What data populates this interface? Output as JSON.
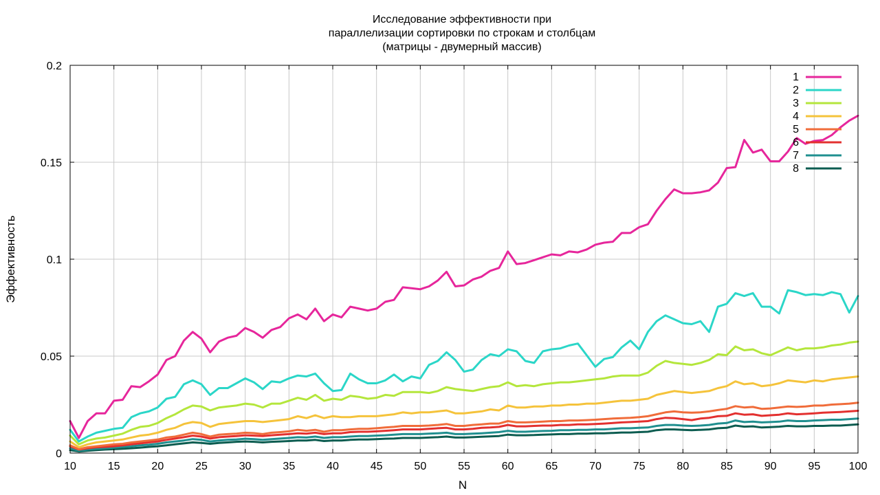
{
  "chart_data": {
    "type": "line",
    "title": [
      "Исследование эффективности при",
      "параллелизации сортировки по строкам и столбцам",
      "(матрицы - двумерный массив)"
    ],
    "xlabel": "N",
    "ylabel": "Эффективность",
    "xlim": [
      10,
      100
    ],
    "ylim": [
      0,
      0.2
    ],
    "xticks": [
      10,
      15,
      20,
      25,
      30,
      35,
      40,
      45,
      50,
      55,
      60,
      65,
      70,
      75,
      80,
      85,
      90,
      95,
      100
    ],
    "yticks": [
      0,
      0.05,
      0.1,
      0.15,
      0.2
    ],
    "ytick_labels": [
      "0",
      "0.05",
      "0.1",
      "0.15",
      "0.2"
    ],
    "grid": true,
    "legend_position": "top-right",
    "x": [
      10,
      11,
      12,
      13,
      14,
      15,
      16,
      17,
      18,
      19,
      20,
      21,
      22,
      23,
      24,
      25,
      26,
      27,
      28,
      29,
      30,
      31,
      32,
      33,
      34,
      35,
      36,
      37,
      38,
      39,
      40,
      41,
      42,
      43,
      44,
      45,
      46,
      47,
      48,
      49,
      50,
      51,
      52,
      53,
      54,
      55,
      56,
      57,
      58,
      59,
      60,
      61,
      62,
      63,
      64,
      65,
      66,
      67,
      68,
      69,
      70,
      71,
      72,
      73,
      74,
      75,
      76,
      77,
      78,
      79,
      80,
      81,
      82,
      83,
      84,
      85,
      86,
      87,
      88,
      89,
      90,
      91,
      92,
      93,
      94,
      95,
      96,
      97,
      98,
      99,
      100
    ],
    "series": [
      {
        "name": "1",
        "color": "#e6269b",
        "values": [
          0.0165,
          0.0078,
          0.0165,
          0.0205,
          0.0205,
          0.027,
          0.0275,
          0.0345,
          0.034,
          0.037,
          0.0405,
          0.048,
          0.05,
          0.058,
          0.0625,
          0.059,
          0.052,
          0.0575,
          0.0595,
          0.0605,
          0.0645,
          0.0625,
          0.0595,
          0.0635,
          0.065,
          0.0695,
          0.0715,
          0.069,
          0.0745,
          0.068,
          0.0715,
          0.07,
          0.0755,
          0.0745,
          0.0735,
          0.0745,
          0.078,
          0.079,
          0.0855,
          0.085,
          0.0845,
          0.086,
          0.089,
          0.0935,
          0.086,
          0.0865,
          0.0895,
          0.091,
          0.094,
          0.0955,
          0.104,
          0.0975,
          0.098,
          0.0995,
          0.101,
          0.1025,
          0.102,
          0.104,
          0.1035,
          0.105,
          0.1075,
          0.1085,
          0.109,
          0.1135,
          0.1135,
          0.1165,
          0.118,
          0.125,
          0.131,
          0.136,
          0.134,
          0.134,
          0.1345,
          0.1355,
          0.1395,
          0.147,
          0.1475,
          0.1615,
          0.155,
          0.1565,
          0.1505,
          0.1505,
          0.1555,
          0.1625,
          0.1595,
          0.161,
          0.1615,
          0.164,
          0.168,
          0.1715,
          0.174
        ]
      },
      {
        "name": "2",
        "color": "#2bd6c8",
        "values": [
          0.012,
          0.006,
          0.0085,
          0.0105,
          0.0115,
          0.0125,
          0.013,
          0.0185,
          0.0205,
          0.0215,
          0.0235,
          0.028,
          0.029,
          0.0355,
          0.0375,
          0.0355,
          0.03,
          0.0335,
          0.0335,
          0.036,
          0.0385,
          0.0365,
          0.033,
          0.037,
          0.0365,
          0.0385,
          0.04,
          0.0395,
          0.041,
          0.036,
          0.032,
          0.0325,
          0.041,
          0.038,
          0.036,
          0.036,
          0.0375,
          0.0405,
          0.037,
          0.0395,
          0.0385,
          0.0455,
          0.0475,
          0.052,
          0.048,
          0.042,
          0.043,
          0.048,
          0.051,
          0.05,
          0.0535,
          0.0525,
          0.0475,
          0.0465,
          0.0525,
          0.0535,
          0.054,
          0.0555,
          0.0565,
          0.0505,
          0.0445,
          0.0485,
          0.0495,
          0.0545,
          0.058,
          0.0535,
          0.0625,
          0.068,
          0.071,
          0.069,
          0.067,
          0.0665,
          0.068,
          0.0625,
          0.0755,
          0.077,
          0.0825,
          0.081,
          0.0825,
          0.0755,
          0.0755,
          0.072,
          0.084,
          0.083,
          0.0815,
          0.082,
          0.0815,
          0.083,
          0.082,
          0.0725,
          0.081
        ]
      },
      {
        "name": "3",
        "color": "#b4e63c",
        "values": [
          0.009,
          0.0045,
          0.0065,
          0.0075,
          0.008,
          0.009,
          0.01,
          0.012,
          0.0135,
          0.014,
          0.0155,
          0.018,
          0.02,
          0.0225,
          0.0245,
          0.024,
          0.022,
          0.0235,
          0.024,
          0.0245,
          0.0255,
          0.025,
          0.0235,
          0.0255,
          0.0255,
          0.027,
          0.0285,
          0.0275,
          0.03,
          0.027,
          0.028,
          0.0275,
          0.0295,
          0.029,
          0.028,
          0.0285,
          0.03,
          0.0295,
          0.0315,
          0.0315,
          0.0315,
          0.031,
          0.032,
          0.034,
          0.033,
          0.0325,
          0.032,
          0.033,
          0.034,
          0.0345,
          0.0365,
          0.0345,
          0.035,
          0.0345,
          0.0355,
          0.036,
          0.0365,
          0.0365,
          0.037,
          0.0375,
          0.038,
          0.0385,
          0.0395,
          0.04,
          0.04,
          0.04,
          0.0415,
          0.045,
          0.0475,
          0.0465,
          0.046,
          0.0455,
          0.0465,
          0.048,
          0.051,
          0.0505,
          0.055,
          0.053,
          0.0535,
          0.0515,
          0.0505,
          0.0525,
          0.0545,
          0.053,
          0.054,
          0.054,
          0.0545,
          0.0555,
          0.056,
          0.057,
          0.0575
        ]
      },
      {
        "name": "4",
        "color": "#f5c33b",
        "values": [
          0.006,
          0.003,
          0.0045,
          0.0055,
          0.006,
          0.0065,
          0.007,
          0.008,
          0.009,
          0.0095,
          0.0105,
          0.012,
          0.013,
          0.015,
          0.016,
          0.0155,
          0.0135,
          0.015,
          0.0155,
          0.016,
          0.0165,
          0.0165,
          0.016,
          0.0165,
          0.017,
          0.0175,
          0.019,
          0.018,
          0.0195,
          0.018,
          0.019,
          0.0185,
          0.0185,
          0.019,
          0.019,
          0.019,
          0.0195,
          0.02,
          0.021,
          0.0205,
          0.021,
          0.021,
          0.0215,
          0.022,
          0.0205,
          0.0205,
          0.021,
          0.0215,
          0.0225,
          0.022,
          0.0245,
          0.0235,
          0.0235,
          0.024,
          0.024,
          0.0245,
          0.0245,
          0.025,
          0.025,
          0.0255,
          0.0255,
          0.026,
          0.0265,
          0.027,
          0.027,
          0.0275,
          0.028,
          0.03,
          0.031,
          0.032,
          0.0315,
          0.031,
          0.0315,
          0.032,
          0.0335,
          0.0345,
          0.037,
          0.0355,
          0.036,
          0.0345,
          0.035,
          0.036,
          0.0375,
          0.037,
          0.0365,
          0.0375,
          0.037,
          0.038,
          0.0385,
          0.039,
          0.0395
        ]
      },
      {
        "name": "5",
        "color": "#f06c3a",
        "values": [
          0.004,
          0.002,
          0.003,
          0.0035,
          0.004,
          0.0045,
          0.0048,
          0.0055,
          0.006,
          0.0065,
          0.007,
          0.008,
          0.0085,
          0.0095,
          0.0105,
          0.0098,
          0.0085,
          0.0095,
          0.0098,
          0.01,
          0.0105,
          0.0103,
          0.0098,
          0.0105,
          0.0108,
          0.0112,
          0.012,
          0.0115,
          0.012,
          0.011,
          0.0118,
          0.0118,
          0.0122,
          0.0125,
          0.0125,
          0.0128,
          0.0132,
          0.0135,
          0.014,
          0.014,
          0.014,
          0.0142,
          0.0145,
          0.015,
          0.014,
          0.014,
          0.0145,
          0.0148,
          0.0152,
          0.0152,
          0.0165,
          0.0158,
          0.0158,
          0.016,
          0.0162,
          0.0165,
          0.0165,
          0.0168,
          0.0168,
          0.017,
          0.0172,
          0.0175,
          0.0178,
          0.018,
          0.0182,
          0.0185,
          0.019,
          0.02,
          0.021,
          0.0215,
          0.021,
          0.0208,
          0.021,
          0.0215,
          0.0222,
          0.0228,
          0.0242,
          0.0235,
          0.0238,
          0.0228,
          0.023,
          0.0235,
          0.024,
          0.0238,
          0.024,
          0.0245,
          0.0245,
          0.025,
          0.0252,
          0.0255,
          0.026
        ]
      },
      {
        "name": "6",
        "color": "#e3302f",
        "values": [
          0.0035,
          0.0018,
          0.0025,
          0.003,
          0.0032,
          0.0035,
          0.004,
          0.0045,
          0.005,
          0.0055,
          0.006,
          0.0068,
          0.0075,
          0.0082,
          0.009,
          0.0085,
          0.0075,
          0.0082,
          0.0085,
          0.0088,
          0.0092,
          0.009,
          0.0088,
          0.0092,
          0.0095,
          0.0098,
          0.0102,
          0.01,
          0.0105,
          0.0098,
          0.0102,
          0.0102,
          0.0108,
          0.011,
          0.011,
          0.0112,
          0.0115,
          0.0118,
          0.0122,
          0.0122,
          0.0122,
          0.0125,
          0.0128,
          0.013,
          0.0122,
          0.0122,
          0.0125,
          0.013,
          0.0132,
          0.0135,
          0.0145,
          0.0138,
          0.0138,
          0.014,
          0.0142,
          0.0142,
          0.0145,
          0.0145,
          0.0148,
          0.0148,
          0.015,
          0.0152,
          0.0155,
          0.0158,
          0.016,
          0.0162,
          0.0165,
          0.0175,
          0.0182,
          0.018,
          0.0175,
          0.017,
          0.0178,
          0.0182,
          0.019,
          0.0192,
          0.0205,
          0.0198,
          0.02,
          0.0192,
          0.0195,
          0.0198,
          0.0205,
          0.02,
          0.0202,
          0.0205,
          0.0208,
          0.021,
          0.0212,
          0.0215,
          0.0218
        ]
      },
      {
        "name": "7",
        "color": "#1f8f8f",
        "values": [
          0.0025,
          0.0012,
          0.0018,
          0.0022,
          0.0025,
          0.0028,
          0.0032,
          0.0035,
          0.004,
          0.0043,
          0.0048,
          0.0055,
          0.006,
          0.0065,
          0.0072,
          0.0068,
          0.006,
          0.0065,
          0.0068,
          0.007,
          0.0074,
          0.0072,
          0.0068,
          0.0072,
          0.0075,
          0.0078,
          0.0082,
          0.008,
          0.0085,
          0.0078,
          0.0082,
          0.0082,
          0.0085,
          0.0088,
          0.0088,
          0.009,
          0.0092,
          0.0095,
          0.0098,
          0.0098,
          0.0098,
          0.01,
          0.0102,
          0.0105,
          0.0098,
          0.0098,
          0.01,
          0.0102,
          0.0105,
          0.0108,
          0.0115,
          0.011,
          0.011,
          0.0112,
          0.0114,
          0.0115,
          0.0118,
          0.0118,
          0.012,
          0.012,
          0.0122,
          0.0122,
          0.0125,
          0.0128,
          0.0128,
          0.013,
          0.0132,
          0.014,
          0.0145,
          0.0145,
          0.0142,
          0.014,
          0.0142,
          0.0145,
          0.0152,
          0.0155,
          0.0168,
          0.016,
          0.0162,
          0.0158,
          0.016,
          0.0162,
          0.0168,
          0.0165,
          0.0165,
          0.0168,
          0.017,
          0.0172,
          0.0172,
          0.0175,
          0.0178
        ]
      },
      {
        "name": "8",
        "color": "#0c5c50",
        "values": [
          0.0015,
          0.0008,
          0.0012,
          0.0015,
          0.0018,
          0.002,
          0.0022,
          0.0025,
          0.0028,
          0.0032,
          0.0035,
          0.004,
          0.0045,
          0.005,
          0.0055,
          0.0052,
          0.0048,
          0.0052,
          0.0055,
          0.0058,
          0.006,
          0.0058,
          0.0055,
          0.0058,
          0.006,
          0.0062,
          0.0065,
          0.0065,
          0.0068,
          0.0062,
          0.0065,
          0.0065,
          0.0068,
          0.007,
          0.007,
          0.0072,
          0.0074,
          0.0075,
          0.0078,
          0.0078,
          0.0078,
          0.008,
          0.0082,
          0.0085,
          0.008,
          0.008,
          0.0082,
          0.0084,
          0.0086,
          0.0088,
          0.0095,
          0.0092,
          0.0092,
          0.0093,
          0.0095,
          0.0096,
          0.0098,
          0.0098,
          0.01,
          0.01,
          0.0102,
          0.0102,
          0.0104,
          0.0106,
          0.0106,
          0.0108,
          0.011,
          0.0118,
          0.0122,
          0.0122,
          0.012,
          0.0118,
          0.012,
          0.0122,
          0.0128,
          0.013,
          0.0142,
          0.0136,
          0.0138,
          0.0132,
          0.0134,
          0.0136,
          0.014,
          0.0138,
          0.0138,
          0.014,
          0.014,
          0.0142,
          0.0142,
          0.0145,
          0.0148
        ]
      }
    ]
  }
}
